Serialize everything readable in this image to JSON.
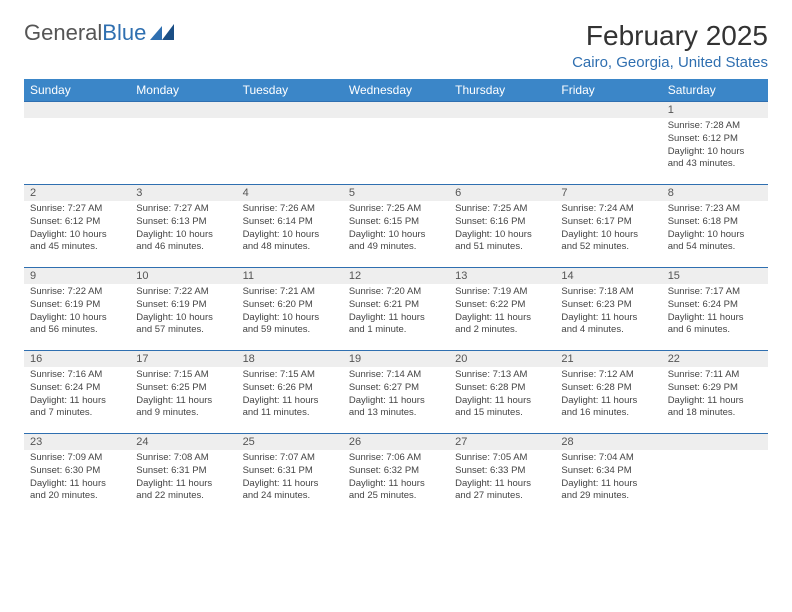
{
  "logo": {
    "text1": "General",
    "text2": "Blue"
  },
  "title": "February 2025",
  "location": "Cairo, Georgia, United States",
  "colors": {
    "header_bg": "#3b86c8",
    "header_text": "#ffffff",
    "daynum_bg": "#eeeeee",
    "accent": "#2f6fb0",
    "body_text": "#444444"
  },
  "dow": [
    "Sunday",
    "Monday",
    "Tuesday",
    "Wednesday",
    "Thursday",
    "Friday",
    "Saturday"
  ],
  "weeks": [
    [
      null,
      null,
      null,
      null,
      null,
      null,
      {
        "n": "1",
        "sr": "7:28 AM",
        "ss": "6:12 PM",
        "dl": "10 hours and 43 minutes."
      }
    ],
    [
      {
        "n": "2",
        "sr": "7:27 AM",
        "ss": "6:12 PM",
        "dl": "10 hours and 45 minutes."
      },
      {
        "n": "3",
        "sr": "7:27 AM",
        "ss": "6:13 PM",
        "dl": "10 hours and 46 minutes."
      },
      {
        "n": "4",
        "sr": "7:26 AM",
        "ss": "6:14 PM",
        "dl": "10 hours and 48 minutes."
      },
      {
        "n": "5",
        "sr": "7:25 AM",
        "ss": "6:15 PM",
        "dl": "10 hours and 49 minutes."
      },
      {
        "n": "6",
        "sr": "7:25 AM",
        "ss": "6:16 PM",
        "dl": "10 hours and 51 minutes."
      },
      {
        "n": "7",
        "sr": "7:24 AM",
        "ss": "6:17 PM",
        "dl": "10 hours and 52 minutes."
      },
      {
        "n": "8",
        "sr": "7:23 AM",
        "ss": "6:18 PM",
        "dl": "10 hours and 54 minutes."
      }
    ],
    [
      {
        "n": "9",
        "sr": "7:22 AM",
        "ss": "6:19 PM",
        "dl": "10 hours and 56 minutes."
      },
      {
        "n": "10",
        "sr": "7:22 AM",
        "ss": "6:19 PM",
        "dl": "10 hours and 57 minutes."
      },
      {
        "n": "11",
        "sr": "7:21 AM",
        "ss": "6:20 PM",
        "dl": "10 hours and 59 minutes."
      },
      {
        "n": "12",
        "sr": "7:20 AM",
        "ss": "6:21 PM",
        "dl": "11 hours and 1 minute."
      },
      {
        "n": "13",
        "sr": "7:19 AM",
        "ss": "6:22 PM",
        "dl": "11 hours and 2 minutes."
      },
      {
        "n": "14",
        "sr": "7:18 AM",
        "ss": "6:23 PM",
        "dl": "11 hours and 4 minutes."
      },
      {
        "n": "15",
        "sr": "7:17 AM",
        "ss": "6:24 PM",
        "dl": "11 hours and 6 minutes."
      }
    ],
    [
      {
        "n": "16",
        "sr": "7:16 AM",
        "ss": "6:24 PM",
        "dl": "11 hours and 7 minutes."
      },
      {
        "n": "17",
        "sr": "7:15 AM",
        "ss": "6:25 PM",
        "dl": "11 hours and 9 minutes."
      },
      {
        "n": "18",
        "sr": "7:15 AM",
        "ss": "6:26 PM",
        "dl": "11 hours and 11 minutes."
      },
      {
        "n": "19",
        "sr": "7:14 AM",
        "ss": "6:27 PM",
        "dl": "11 hours and 13 minutes."
      },
      {
        "n": "20",
        "sr": "7:13 AM",
        "ss": "6:28 PM",
        "dl": "11 hours and 15 minutes."
      },
      {
        "n": "21",
        "sr": "7:12 AM",
        "ss": "6:28 PM",
        "dl": "11 hours and 16 minutes."
      },
      {
        "n": "22",
        "sr": "7:11 AM",
        "ss": "6:29 PM",
        "dl": "11 hours and 18 minutes."
      }
    ],
    [
      {
        "n": "23",
        "sr": "7:09 AM",
        "ss": "6:30 PM",
        "dl": "11 hours and 20 minutes."
      },
      {
        "n": "24",
        "sr": "7:08 AM",
        "ss": "6:31 PM",
        "dl": "11 hours and 22 minutes."
      },
      {
        "n": "25",
        "sr": "7:07 AM",
        "ss": "6:31 PM",
        "dl": "11 hours and 24 minutes."
      },
      {
        "n": "26",
        "sr": "7:06 AM",
        "ss": "6:32 PM",
        "dl": "11 hours and 25 minutes."
      },
      {
        "n": "27",
        "sr": "7:05 AM",
        "ss": "6:33 PM",
        "dl": "11 hours and 27 minutes."
      },
      {
        "n": "28",
        "sr": "7:04 AM",
        "ss": "6:34 PM",
        "dl": "11 hours and 29 minutes."
      },
      null
    ]
  ],
  "labels": {
    "sunrise": "Sunrise:",
    "sunset": "Sunset:",
    "daylight": "Daylight:"
  }
}
